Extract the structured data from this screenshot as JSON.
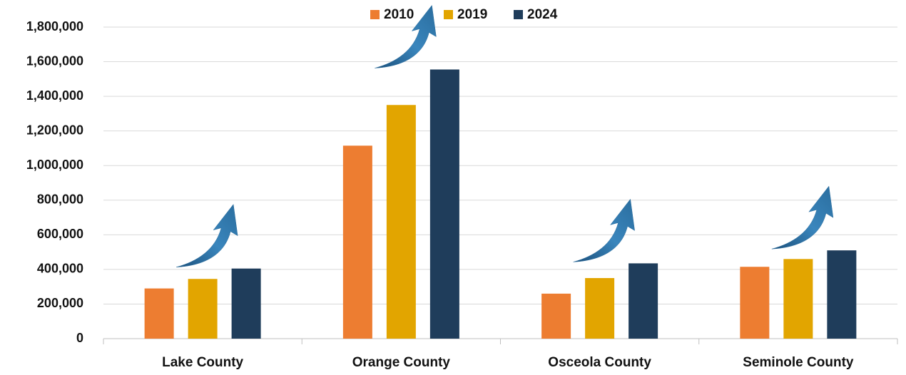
{
  "chart_data": {
    "type": "bar",
    "categories": [
      "Lake County",
      "Orange County",
      "Osceola County",
      "Seminole County"
    ],
    "series": [
      {
        "name": "2010",
        "color": "#ed7d31",
        "values": [
          290000,
          1115000,
          260000,
          415000
        ]
      },
      {
        "name": "2019",
        "color": "#e2a500",
        "values": [
          345000,
          1350000,
          350000,
          460000
        ]
      },
      {
        "name": "2024",
        "color": "#1f3d5b",
        "values": [
          405000,
          1555000,
          435000,
          510000
        ]
      }
    ],
    "ylim": [
      0,
      1800000
    ],
    "yticks": [
      0,
      {
        "value": 200000,
        "label": "200,000"
      },
      {
        "value": 400000,
        "label": "400,000"
      },
      {
        "value": 600000,
        "label": "600,000"
      },
      {
        "value": 800000,
        "label": "800,000"
      },
      {
        "value": 1000000,
        "label": "1,000,000"
      },
      {
        "value": 1200000,
        "label": "1,200,000"
      },
      {
        "value": 1400000,
        "label": "1,400,000"
      },
      {
        "value": 1600000,
        "label": "1,600,000"
      },
      {
        "value": 1800000,
        "label": "1,800,000"
      }
    ],
    "grid": true,
    "legend": "top"
  }
}
